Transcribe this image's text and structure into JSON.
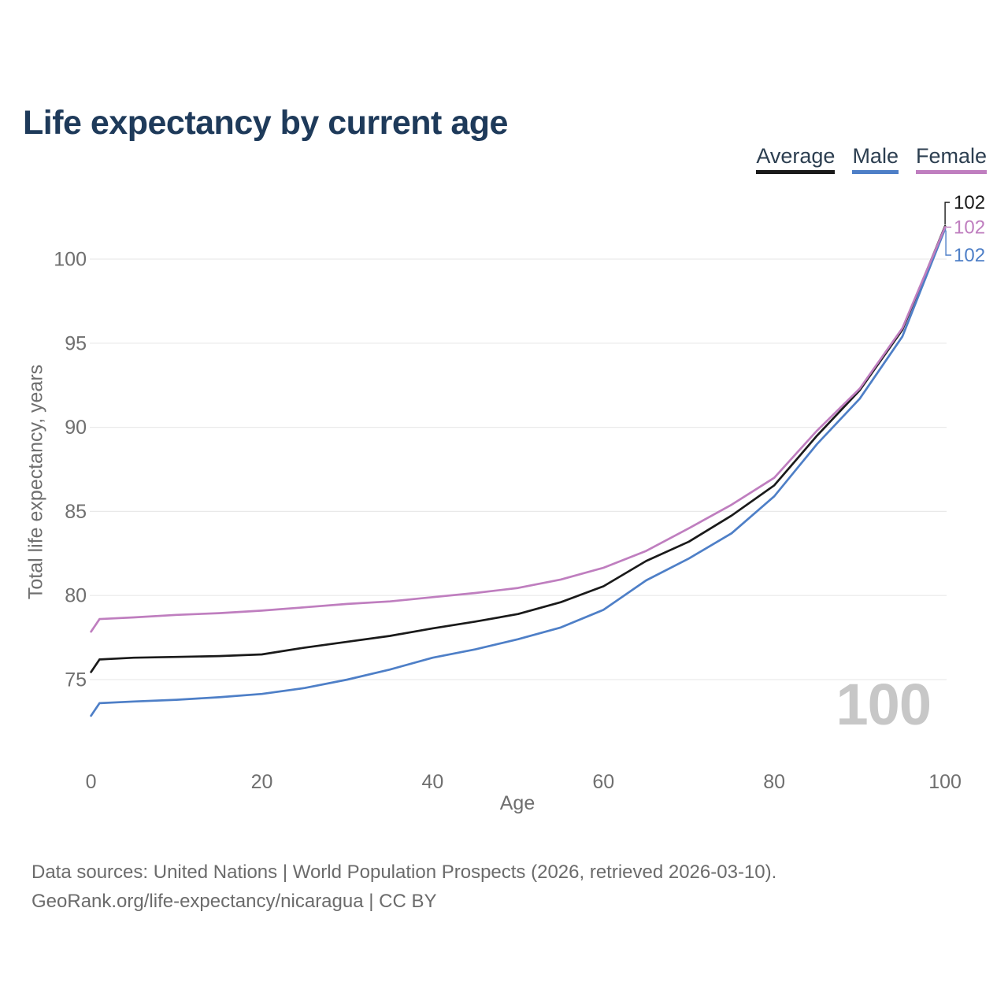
{
  "page": {
    "title": "Life expectancy by current age",
    "footer_line1": "Data sources: United Nations | World Population Prospects (2026, retrieved 2026-03-10).",
    "footer_line2": "GeoRank.org/life-expectancy/nicaragua | CC BY"
  },
  "chart_data": {
    "type": "line",
    "title": "Life expectancy by current age",
    "xlabel": "Age",
    "ylabel": "Total life expectancy, years",
    "xlim": [
      0,
      100
    ],
    "ylim": [
      72,
      103
    ],
    "grid": "horizontal",
    "legend_position": "top-right",
    "xticks": [
      0,
      20,
      40,
      60,
      80,
      100
    ],
    "yticks": [
      75,
      80,
      85,
      90,
      95,
      100
    ],
    "x": [
      0,
      1,
      5,
      10,
      15,
      20,
      25,
      30,
      35,
      40,
      45,
      50,
      55,
      60,
      65,
      70,
      75,
      80,
      85,
      90,
      95,
      100
    ],
    "series": [
      {
        "name": "Average",
        "color": "#1a1a1a",
        "end_label": "102",
        "values": [
          75.45,
          76.2,
          76.3,
          76.35,
          76.4,
          76.5,
          76.9,
          77.25,
          77.6,
          78.05,
          78.45,
          78.9,
          79.6,
          80.55,
          82.05,
          83.2,
          84.75,
          86.55,
          89.5,
          92.2,
          95.8,
          101.95
        ]
      },
      {
        "name": "Male",
        "color": "#4e7fc7",
        "end_label": "102",
        "values": [
          72.85,
          73.6,
          73.7,
          73.8,
          73.95,
          74.15,
          74.5,
          75.0,
          75.6,
          76.3,
          76.8,
          77.4,
          78.1,
          79.15,
          80.9,
          82.2,
          83.7,
          85.9,
          89.0,
          91.7,
          95.4,
          101.8
        ]
      },
      {
        "name": "Female",
        "color": "#bf7ebf",
        "end_label": "102",
        "values": [
          77.85,
          78.6,
          78.7,
          78.85,
          78.95,
          79.1,
          79.3,
          79.5,
          79.65,
          79.9,
          80.15,
          80.45,
          80.95,
          81.65,
          82.65,
          84.0,
          85.4,
          87.0,
          89.8,
          92.3,
          95.9,
          101.9
        ]
      }
    ],
    "annotations": [
      {
        "text": "100",
        "position": "bottom-right"
      }
    ],
    "colors": {
      "title": "#1e3a5a",
      "axis_text": "#6f6f6f",
      "gridline": "#e9e9e9",
      "watermark": "#c7c7c7",
      "footer_text": "#6b6b6b"
    }
  }
}
